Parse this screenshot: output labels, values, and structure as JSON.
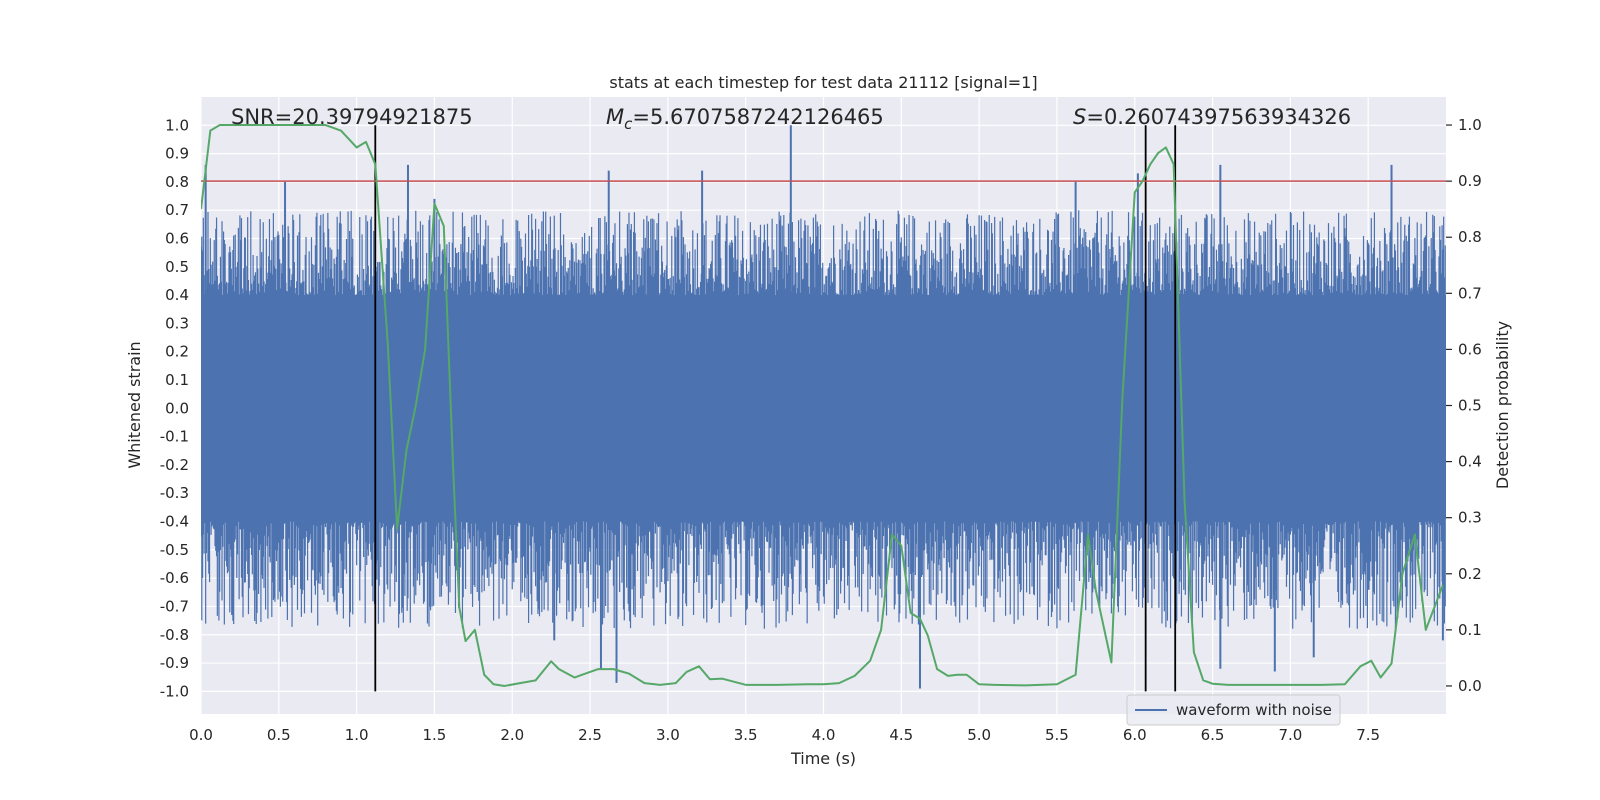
{
  "chart_data": {
    "type": "line",
    "title": "stats at each timestep for test data 21112 [signal=1]",
    "xlabel": "Time (s)",
    "ylabel_left": "Whitened strain",
    "ylabel_right": "Detection probability",
    "xlim": [
      0,
      8
    ],
    "ylim_left": [
      -1.08,
      1.1
    ],
    "ylim_right": [
      -0.05,
      1.05
    ],
    "x_ticks": [
      0.0,
      0.5,
      1.0,
      1.5,
      2.0,
      2.5,
      3.0,
      3.5,
      4.0,
      4.5,
      5.0,
      5.5,
      6.0,
      6.5,
      7.0,
      7.5
    ],
    "x_tick_labels": [
      "0.0",
      "0.5",
      "1.0",
      "1.5",
      "2.0",
      "2.5",
      "3.0",
      "3.5",
      "4.0",
      "4.5",
      "5.0",
      "5.5",
      "6.0",
      "6.5",
      "7.0",
      "7.5"
    ],
    "y_left_ticks": [
      1.0,
      0.9,
      0.8,
      0.7,
      0.6,
      0.5,
      0.4,
      0.3,
      0.2,
      0.1,
      0.0,
      -0.1,
      -0.2,
      -0.3,
      -0.4,
      -0.5,
      -0.6,
      -0.7,
      -0.8,
      -0.9,
      -1.0
    ],
    "y_left_tick_labels": [
      "1.0",
      "0.9",
      "0.8",
      "0.7",
      "0.6",
      "0.5",
      "0.4",
      "0.3",
      "0.2",
      "0.1",
      "0.0",
      "-0.1",
      "-0.2",
      "-0.3",
      "-0.4",
      "-0.5",
      "-0.6",
      "-0.7",
      "-0.8",
      "-0.9",
      "-1.0"
    ],
    "y_right_ticks": [
      1.0,
      0.9,
      0.8,
      0.7,
      0.6,
      0.5,
      0.4,
      0.3,
      0.2,
      0.1,
      0.0
    ],
    "y_right_tick_labels": [
      "1.0",
      "0.9",
      "0.8",
      "0.7",
      "0.6",
      "0.5",
      "0.4",
      "0.3",
      "0.2",
      "0.1",
      "0.0"
    ],
    "annotations": {
      "snr": "SNR=20.39794921875",
      "mc_symbol": "M",
      "mc_subscript": "c",
      "mc_value": "=5.6707587242126465",
      "s_symbol": "S",
      "s_value": "=0.26074397563934326"
    },
    "legend": {
      "label": "waveform with noise",
      "position": "lower-right"
    },
    "waveform": {
      "name": "waveform with noise",
      "color": "#4c72b0",
      "axis": "left",
      "dense_band": [
        -0.39,
        0.4
      ],
      "typical_peak_range": [
        0.4,
        0.7
      ],
      "tallest_spikes": [
        {
          "t": 0.03,
          "v": 0.86
        },
        {
          "t": 0.54,
          "v": 0.8
        },
        {
          "t": 1.33,
          "v": 0.86
        },
        {
          "t": 1.5,
          "v": 0.74
        },
        {
          "t": 2.62,
          "v": 0.84
        },
        {
          "t": 3.22,
          "v": 0.84
        },
        {
          "t": 3.79,
          "v": 1.0
        },
        {
          "t": 5.62,
          "v": 0.8
        },
        {
          "t": 6.02,
          "v": 0.83
        },
        {
          "t": 6.55,
          "v": 0.86
        },
        {
          "t": 7.65,
          "v": 0.86
        },
        {
          "t": 0.2,
          "v": -0.73
        },
        {
          "t": 2.27,
          "v": -0.82
        },
        {
          "t": 2.57,
          "v": -0.92
        },
        {
          "t": 2.67,
          "v": -0.97
        },
        {
          "t": 4.62,
          "v": -0.99
        },
        {
          "t": 6.55,
          "v": -0.92
        },
        {
          "t": 6.9,
          "v": -0.93
        },
        {
          "t": 7.15,
          "v": -0.88
        },
        {
          "t": 7.98,
          "v": -0.82
        }
      ]
    },
    "detection_probability": {
      "color": "#55a868",
      "axis": "right",
      "x": [
        0.0,
        0.06,
        0.12,
        0.2,
        0.3,
        0.4,
        0.5,
        0.6,
        0.7,
        0.8,
        0.9,
        1.0,
        1.06,
        1.12,
        1.2,
        1.26,
        1.32,
        1.38,
        1.44,
        1.5,
        1.56,
        1.62,
        1.66,
        1.7,
        1.76,
        1.82,
        1.88,
        1.95,
        2.05,
        2.15,
        2.25,
        2.3,
        2.4,
        2.45,
        2.55,
        2.65,
        2.75,
        2.85,
        2.95,
        3.05,
        3.12,
        3.2,
        3.27,
        3.35,
        3.5,
        3.7,
        3.9,
        4.0,
        4.1,
        4.2,
        4.3,
        4.37,
        4.44,
        4.5,
        4.56,
        4.62,
        4.67,
        4.73,
        4.8,
        4.86,
        4.92,
        5.0,
        5.1,
        5.3,
        5.5,
        5.62,
        5.7,
        5.75,
        5.85,
        5.92,
        6.0,
        6.05,
        6.1,
        6.15,
        6.2,
        6.25,
        6.32,
        6.38,
        6.44,
        6.5,
        6.6,
        6.8,
        7.0,
        7.2,
        7.35,
        7.45,
        7.52,
        7.58,
        7.65,
        7.72,
        7.8,
        7.87,
        7.98
      ],
      "values": [
        0.85,
        0.99,
        1.0,
        1.0,
        1.0,
        1.0,
        1.0,
        1.0,
        1.0,
        1.0,
        0.99,
        0.96,
        0.97,
        0.93,
        0.61,
        0.28,
        0.42,
        0.5,
        0.6,
        0.86,
        0.82,
        0.39,
        0.14,
        0.08,
        0.1,
        0.02,
        0.003,
        0.0,
        0.005,
        0.01,
        0.044,
        0.03,
        0.015,
        0.02,
        0.03,
        0.03,
        0.022,
        0.005,
        0.002,
        0.005,
        0.025,
        0.035,
        0.012,
        0.013,
        0.002,
        0.002,
        0.003,
        0.003,
        0.005,
        0.018,
        0.045,
        0.1,
        0.27,
        0.25,
        0.13,
        0.12,
        0.09,
        0.03,
        0.018,
        0.02,
        0.02,
        0.003,
        0.002,
        0.001,
        0.003,
        0.02,
        0.27,
        0.17,
        0.042,
        0.51,
        0.88,
        0.9,
        0.93,
        0.95,
        0.96,
        0.93,
        0.33,
        0.06,
        0.01,
        0.004,
        0.002,
        0.002,
        0.002,
        0.002,
        0.003,
        0.035,
        0.045,
        0.015,
        0.04,
        0.2,
        0.27,
        0.1,
        0.18
      ]
    },
    "threshold_line": {
      "value": 0.9,
      "axis": "right",
      "color": "#c44e52"
    },
    "vertical_markers": [
      {
        "x": 1.12,
        "y_from": -1.0,
        "y_to": 1.0,
        "color": "#000000"
      },
      {
        "x": 6.07,
        "y_from": -1.0,
        "y_to": 1.0,
        "color": "#000000"
      },
      {
        "x": 6.26,
        "y_from": -1.0,
        "y_to": 1.0,
        "color": "#000000"
      }
    ],
    "grid": true,
    "style": {
      "background": "#eaeaf2",
      "grid_color": "#ffffff"
    }
  }
}
